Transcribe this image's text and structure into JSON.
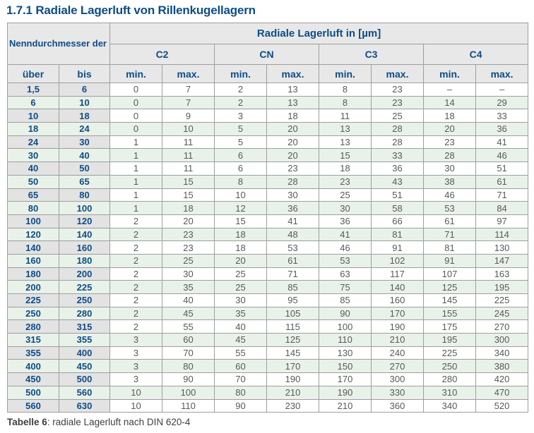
{
  "page_title": "1.7.1 Radiale Lagerluft von Rillenkugellagern",
  "table": {
    "header": {
      "bore_group_label": "Nenndurchmesser der Bohrung d [mm]",
      "clearance_group_label": "Radiale Lagerluft in [µm]",
      "classes": [
        "C2",
        "CN",
        "C3",
        "C4"
      ],
      "sub_headers": [
        "über",
        "bis",
        "min.",
        "max.",
        "min.",
        "max.",
        "min.",
        "max.",
        "min.",
        "max."
      ]
    },
    "rows": [
      [
        "1,5",
        "6",
        "0",
        "7",
        "2",
        "13",
        "8",
        "23",
        "–",
        "–"
      ],
      [
        "6",
        "10",
        "0",
        "7",
        "2",
        "13",
        "8",
        "23",
        "14",
        "29"
      ],
      [
        "10",
        "18",
        "0",
        "9",
        "3",
        "18",
        "11",
        "25",
        "18",
        "33"
      ],
      [
        "18",
        "24",
        "0",
        "10",
        "5",
        "20",
        "13",
        "28",
        "20",
        "36"
      ],
      [
        "24",
        "30",
        "1",
        "11",
        "5",
        "20",
        "13",
        "28",
        "23",
        "41"
      ],
      [
        "30",
        "40",
        "1",
        "11",
        "6",
        "20",
        "15",
        "33",
        "28",
        "46"
      ],
      [
        "40",
        "50",
        "1",
        "11",
        "6",
        "23",
        "18",
        "36",
        "30",
        "51"
      ],
      [
        "50",
        "65",
        "1",
        "15",
        "8",
        "28",
        "23",
        "43",
        "38",
        "61"
      ],
      [
        "65",
        "80",
        "1",
        "15",
        "10",
        "30",
        "25",
        "51",
        "46",
        "71"
      ],
      [
        "80",
        "100",
        "1",
        "18",
        "12",
        "36",
        "30",
        "58",
        "53",
        "84"
      ],
      [
        "100",
        "120",
        "2",
        "20",
        "15",
        "41",
        "36",
        "66",
        "61",
        "97"
      ],
      [
        "120",
        "140",
        "2",
        "23",
        "18",
        "48",
        "41",
        "81",
        "71",
        "114"
      ],
      [
        "140",
        "160",
        "2",
        "23",
        "18",
        "53",
        "46",
        "91",
        "81",
        "130"
      ],
      [
        "160",
        "180",
        "2",
        "25",
        "20",
        "61",
        "53",
        "102",
        "91",
        "147"
      ],
      [
        "180",
        "200",
        "2",
        "30",
        "25",
        "71",
        "63",
        "117",
        "107",
        "163"
      ],
      [
        "200",
        "225",
        "2",
        "35",
        "25",
        "85",
        "75",
        "140",
        "125",
        "195"
      ],
      [
        "225",
        "250",
        "2",
        "40",
        "30",
        "95",
        "85",
        "160",
        "145",
        "225"
      ],
      [
        "250",
        "280",
        "2",
        "45",
        "35",
        "105",
        "90",
        "170",
        "155",
        "245"
      ],
      [
        "280",
        "315",
        "2",
        "55",
        "40",
        "115",
        "100",
        "190",
        "175",
        "270"
      ],
      [
        "315",
        "355",
        "3",
        "60",
        "45",
        "125",
        "110",
        "210",
        "195",
        "300"
      ],
      [
        "355",
        "400",
        "3",
        "70",
        "55",
        "145",
        "130",
        "240",
        "225",
        "340"
      ],
      [
        "400",
        "450",
        "3",
        "80",
        "60",
        "170",
        "150",
        "270",
        "250",
        "380"
      ],
      [
        "450",
        "500",
        "3",
        "90",
        "70",
        "190",
        "170",
        "300",
        "280",
        "420"
      ],
      [
        "500",
        "560",
        "10",
        "100",
        "80",
        "210",
        "190",
        "330",
        "310",
        "470"
      ],
      [
        "560",
        "630",
        "10",
        "110",
        "90",
        "230",
        "210",
        "360",
        "340",
        "520"
      ]
    ]
  },
  "caption": {
    "label": "Tabelle 6",
    "text": ": radiale Lagerluft nach DIN 620-4"
  },
  "colors": {
    "accent_blue": "#0e4c87",
    "header_bg": "#e8e8e8",
    "range_col_bg": "#e3e3e3",
    "row_alt_bg": "#e9f2e8",
    "data_text": "#58595b",
    "border": "#9e9e9e"
  }
}
